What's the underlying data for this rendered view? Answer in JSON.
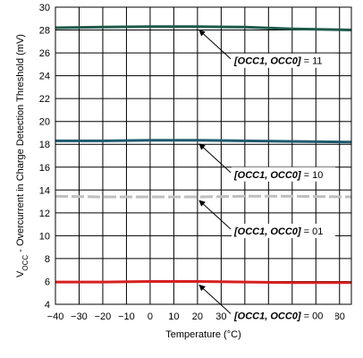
{
  "chart_data": {
    "type": "line",
    "xlabel": "Temperature (°C)",
    "ylabel": {
      "prefix": "V",
      "sub": "OCC",
      "rest": " - Overcurrent in Charge Detection Threshold (mV)"
    },
    "xlim": [
      -40,
      85
    ],
    "ylim": [
      4,
      30
    ],
    "x_ticks": [
      -40,
      -30,
      -20,
      -10,
      0,
      10,
      20,
      30,
      40,
      50,
      60,
      70,
      80
    ],
    "x_tick_labels": [
      "−40",
      "−30",
      "−20",
      "−10",
      "0",
      "10",
      "20",
      "30",
      "40",
      "50",
      "60",
      "70",
      "80"
    ],
    "y_ticks": [
      4,
      6,
      8,
      10,
      12,
      14,
      16,
      18,
      20,
      22,
      24,
      26,
      28,
      30
    ],
    "y_tick_labels": [
      "4",
      "6",
      "8",
      "10",
      "12",
      "14",
      "16",
      "18",
      "20",
      "22",
      "24",
      "26",
      "28",
      "30"
    ],
    "grid": true,
    "series": [
      {
        "name": "[OCC1, OCC0] = 11",
        "color": "#1f5a4a",
        "dashed": false,
        "x": [
          -40,
          -20,
          0,
          20,
          40,
          60,
          85
        ],
        "y": [
          28.2,
          28.25,
          28.3,
          28.3,
          28.25,
          28.1,
          28.0
        ]
      },
      {
        "name": "[OCC1, OCC0] = 10",
        "color": "#1f5a6e",
        "dashed": false,
        "x": [
          -40,
          -20,
          0,
          20,
          40,
          60,
          85
        ],
        "y": [
          18.3,
          18.3,
          18.35,
          18.35,
          18.3,
          18.25,
          18.2
        ]
      },
      {
        "name": "[OCC1, OCC0] = 01",
        "color": "#bfbfbf",
        "dashed": true,
        "x": [
          -40,
          -20,
          0,
          20,
          40,
          60,
          85
        ],
        "y": [
          13.45,
          13.4,
          13.4,
          13.4,
          13.45,
          13.45,
          13.4
        ]
      },
      {
        "name": "[OCC1, OCC0] = 00",
        "color": "#d62020",
        "dashed": false,
        "x": [
          -40,
          -20,
          0,
          20,
          40,
          60,
          85
        ],
        "y": [
          5.95,
          5.95,
          6.0,
          6.0,
          5.95,
          5.9,
          5.9
        ]
      }
    ],
    "annotations": [
      {
        "label": "[OCC1, OCC0]",
        "suffix": " = 11",
        "arrow_to": [
          20,
          28.3
        ]
      },
      {
        "label": "[OCC1, OCC0]",
        "suffix": " = 10",
        "arrow_to": [
          20,
          18.35
        ]
      },
      {
        "label": "[OCC1, OCC0]",
        "suffix": " = 01",
        "arrow_to": [
          20,
          13.4
        ]
      },
      {
        "label": "[OCC1, OCC0]",
        "suffix": " = 00",
        "arrow_to": [
          20,
          6.0
        ]
      }
    ]
  }
}
